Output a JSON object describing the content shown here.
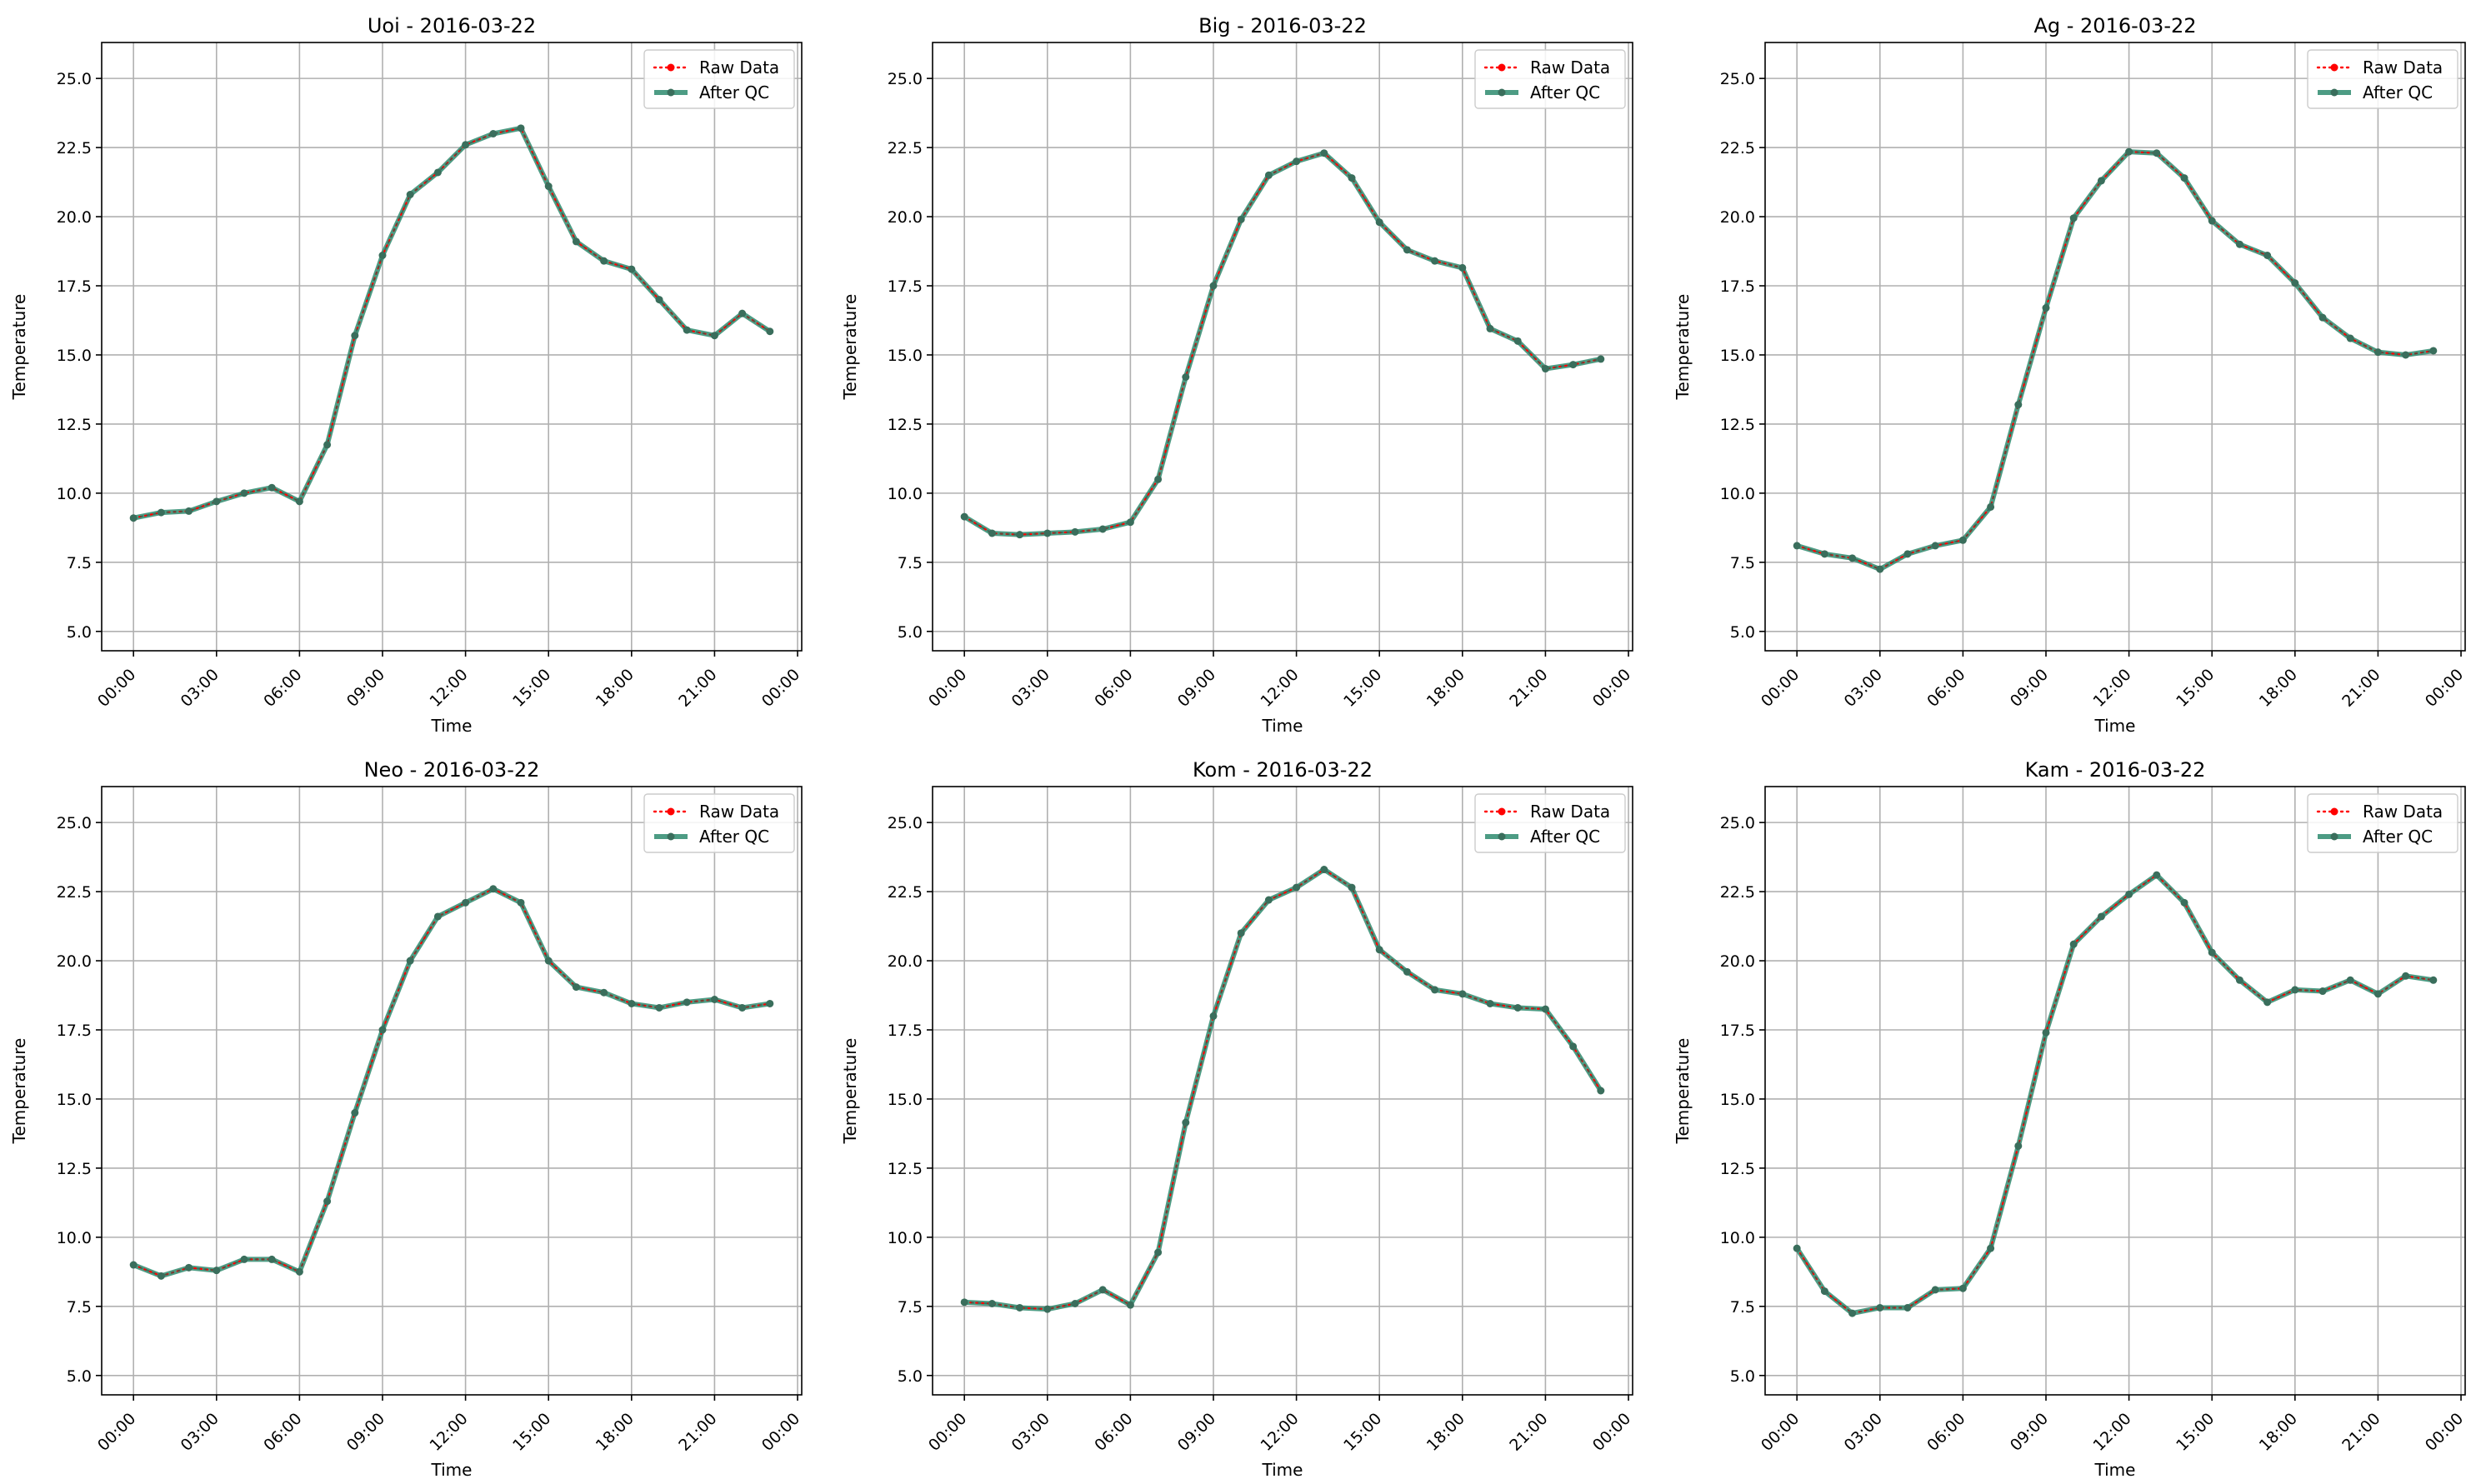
{
  "chart_data": [
    {
      "type": "line",
      "title": "Uoi - 2016-03-22",
      "xlabel": "Time",
      "ylabel": "Temperature",
      "x_ticks": [
        "00:00",
        "03:00",
        "06:00",
        "09:00",
        "12:00",
        "15:00",
        "18:00",
        "21:00",
        "00:00"
      ],
      "y_ticks": [
        "5.0",
        "7.5",
        "10.0",
        "12.5",
        "15.0",
        "17.5",
        "20.0",
        "22.5",
        "25.0"
      ],
      "ylim": [
        4.3,
        26.3
      ],
      "xlim_hours": [
        -1.15,
        24.15
      ],
      "grid": true,
      "legend_position": "top-right",
      "x_hours": [
        0,
        1,
        2,
        3,
        4,
        5,
        6,
        7,
        8,
        9,
        10,
        11,
        12,
        13,
        14,
        15,
        16,
        17,
        18,
        19,
        20,
        21,
        22,
        23
      ],
      "series": [
        {
          "name": "Raw Data",
          "color": "#ff0000",
          "values": [
            9.1,
            9.3,
            9.35,
            9.7,
            10.0,
            10.2,
            9.7,
            11.75,
            15.7,
            18.6,
            20.8,
            21.6,
            22.6,
            23.0,
            23.2,
            21.1,
            19.1,
            18.4,
            18.1,
            17.0,
            15.9,
            15.7,
            16.5,
            15.85
          ]
        },
        {
          "name": "After QC",
          "color": "#2e8b6e",
          "values": [
            9.1,
            9.3,
            9.35,
            9.7,
            10.0,
            10.2,
            9.7,
            11.75,
            15.7,
            18.6,
            20.8,
            21.6,
            22.6,
            23.0,
            23.2,
            21.1,
            19.1,
            18.4,
            18.1,
            17.0,
            15.9,
            15.7,
            16.5,
            15.85
          ]
        }
      ]
    },
    {
      "type": "line",
      "title": "Big - 2016-03-22",
      "xlabel": "Time",
      "ylabel": "Temperature",
      "x_ticks": [
        "00:00",
        "03:00",
        "06:00",
        "09:00",
        "12:00",
        "15:00",
        "18:00",
        "21:00",
        "00:00"
      ],
      "y_ticks": [
        "5.0",
        "7.5",
        "10.0",
        "12.5",
        "15.0",
        "17.5",
        "20.0",
        "22.5",
        "25.0"
      ],
      "ylim": [
        4.3,
        26.3
      ],
      "xlim_hours": [
        -1.15,
        24.15
      ],
      "grid": true,
      "legend_position": "top-right",
      "x_hours": [
        0,
        1,
        2,
        3,
        4,
        5,
        6,
        7,
        8,
        9,
        10,
        11,
        12,
        13,
        14,
        15,
        16,
        17,
        18,
        19,
        20,
        21,
        22,
        23
      ],
      "series": [
        {
          "name": "Raw Data",
          "color": "#ff0000",
          "values": [
            9.15,
            8.55,
            8.5,
            8.55,
            8.6,
            8.7,
            8.95,
            10.5,
            14.2,
            17.5,
            19.9,
            21.5,
            22.0,
            22.3,
            21.4,
            19.8,
            18.8,
            18.4,
            18.15,
            15.95,
            15.5,
            14.5,
            14.65,
            14.85
          ]
        },
        {
          "name": "After QC",
          "color": "#2e8b6e",
          "values": [
            9.15,
            8.55,
            8.5,
            8.55,
            8.6,
            8.7,
            8.95,
            10.5,
            14.2,
            17.5,
            19.9,
            21.5,
            22.0,
            22.3,
            21.4,
            19.8,
            18.8,
            18.4,
            18.15,
            15.95,
            15.5,
            14.5,
            14.65,
            14.85
          ]
        }
      ]
    },
    {
      "type": "line",
      "title": "Ag - 2016-03-22",
      "xlabel": "Time",
      "ylabel": "Temperature",
      "x_ticks": [
        "00:00",
        "03:00",
        "06:00",
        "09:00",
        "12:00",
        "15:00",
        "18:00",
        "21:00",
        "00:00"
      ],
      "y_ticks": [
        "5.0",
        "7.5",
        "10.0",
        "12.5",
        "15.0",
        "17.5",
        "20.0",
        "22.5",
        "25.0"
      ],
      "ylim": [
        4.3,
        26.3
      ],
      "xlim_hours": [
        -1.15,
        24.15
      ],
      "grid": true,
      "legend_position": "top-right",
      "x_hours": [
        0,
        1,
        2,
        3,
        4,
        5,
        6,
        7,
        8,
        9,
        10,
        11,
        12,
        13,
        14,
        15,
        16,
        17,
        18,
        19,
        20,
        21,
        22,
        23
      ],
      "series": [
        {
          "name": "Raw Data",
          "color": "#ff0000",
          "values": [
            8.1,
            7.8,
            7.65,
            7.25,
            7.8,
            8.1,
            8.3,
            9.5,
            13.2,
            16.7,
            19.95,
            21.3,
            22.35,
            22.3,
            21.4,
            19.85,
            19.0,
            18.6,
            17.6,
            16.35,
            15.6,
            15.1,
            15.0,
            15.15
          ]
        },
        {
          "name": "After QC",
          "color": "#2e8b6e",
          "values": [
            8.1,
            7.8,
            7.65,
            7.25,
            7.8,
            8.1,
            8.3,
            9.5,
            13.2,
            16.7,
            19.95,
            21.3,
            22.35,
            22.3,
            21.4,
            19.85,
            19.0,
            18.6,
            17.6,
            16.35,
            15.6,
            15.1,
            15.0,
            15.15
          ]
        }
      ]
    },
    {
      "type": "line",
      "title": "Neo - 2016-03-22",
      "xlabel": "Time",
      "ylabel": "Temperature",
      "x_ticks": [
        "00:00",
        "03:00",
        "06:00",
        "09:00",
        "12:00",
        "15:00",
        "18:00",
        "21:00",
        "00:00"
      ],
      "y_ticks": [
        "5.0",
        "7.5",
        "10.0",
        "12.5",
        "15.0",
        "17.5",
        "20.0",
        "22.5",
        "25.0"
      ],
      "ylim": [
        4.3,
        26.3
      ],
      "xlim_hours": [
        -1.15,
        24.15
      ],
      "grid": true,
      "legend_position": "top-right",
      "x_hours": [
        0,
        1,
        2,
        3,
        4,
        5,
        6,
        7,
        8,
        9,
        10,
        11,
        12,
        13,
        14,
        15,
        16,
        17,
        18,
        19,
        20,
        21,
        22,
        23
      ],
      "series": [
        {
          "name": "Raw Data",
          "color": "#ff0000",
          "values": [
            9.0,
            8.6,
            8.9,
            8.8,
            9.2,
            9.2,
            8.75,
            11.3,
            14.5,
            17.5,
            20.0,
            21.6,
            22.1,
            22.6,
            22.1,
            20.0,
            19.05,
            18.85,
            18.45,
            18.3,
            18.5,
            18.6,
            18.3,
            18.45
          ]
        },
        {
          "name": "After QC",
          "color": "#2e8b6e",
          "values": [
            9.0,
            8.6,
            8.9,
            8.8,
            9.2,
            9.2,
            8.75,
            11.3,
            14.5,
            17.5,
            20.0,
            21.6,
            22.1,
            22.6,
            22.1,
            20.0,
            19.05,
            18.85,
            18.45,
            18.3,
            18.5,
            18.6,
            18.3,
            18.45
          ]
        }
      ]
    },
    {
      "type": "line",
      "title": "Kom - 2016-03-22",
      "xlabel": "Time",
      "ylabel": "Temperature",
      "x_ticks": [
        "00:00",
        "03:00",
        "06:00",
        "09:00",
        "12:00",
        "15:00",
        "18:00",
        "21:00",
        "00:00"
      ],
      "y_ticks": [
        "5.0",
        "7.5",
        "10.0",
        "12.5",
        "15.0",
        "17.5",
        "20.0",
        "22.5",
        "25.0"
      ],
      "ylim": [
        4.3,
        26.3
      ],
      "xlim_hours": [
        -1.15,
        24.15
      ],
      "grid": true,
      "legend_position": "top-right",
      "x_hours": [
        0,
        1,
        2,
        3,
        4,
        5,
        6,
        7,
        8,
        9,
        10,
        11,
        12,
        13,
        14,
        15,
        16,
        17,
        18,
        19,
        20,
        21,
        22,
        23
      ],
      "series": [
        {
          "name": "Raw Data",
          "color": "#ff0000",
          "values": [
            7.65,
            7.6,
            7.45,
            7.4,
            7.6,
            8.1,
            7.55,
            9.45,
            14.15,
            18.0,
            21.0,
            22.2,
            22.65,
            23.3,
            22.65,
            20.4,
            19.6,
            18.95,
            18.8,
            18.45,
            18.3,
            18.25,
            16.9,
            15.3
          ]
        },
        {
          "name": "After QC",
          "color": "#2e8b6e",
          "values": [
            7.65,
            7.6,
            7.45,
            7.4,
            7.6,
            8.1,
            7.55,
            9.45,
            14.15,
            18.0,
            21.0,
            22.2,
            22.65,
            23.3,
            22.65,
            20.4,
            19.6,
            18.95,
            18.8,
            18.45,
            18.3,
            18.25,
            16.9,
            15.3
          ]
        }
      ]
    },
    {
      "type": "line",
      "title": "Kam - 2016-03-22",
      "xlabel": "Time",
      "ylabel": "Temperature",
      "x_ticks": [
        "00:00",
        "03:00",
        "06:00",
        "09:00",
        "12:00",
        "15:00",
        "18:00",
        "21:00",
        "00:00"
      ],
      "y_ticks": [
        "5.0",
        "7.5",
        "10.0",
        "12.5",
        "15.0",
        "17.5",
        "20.0",
        "22.5",
        "25.0"
      ],
      "ylim": [
        4.3,
        26.3
      ],
      "xlim_hours": [
        -1.15,
        24.15
      ],
      "grid": true,
      "legend_position": "top-right",
      "x_hours": [
        0,
        1,
        2,
        3,
        4,
        5,
        6,
        7,
        8,
        9,
        10,
        11,
        12,
        13,
        14,
        15,
        16,
        17,
        18,
        19,
        20,
        21,
        22,
        23
      ],
      "series": [
        {
          "name": "Raw Data",
          "color": "#ff0000",
          "values": [
            9.6,
            8.05,
            7.25,
            7.45,
            7.45,
            8.1,
            8.15,
            9.6,
            13.3,
            17.4,
            20.6,
            21.6,
            22.4,
            23.1,
            22.1,
            20.3,
            19.3,
            18.5,
            18.95,
            18.9,
            19.3,
            18.8,
            19.45,
            19.3
          ]
        },
        {
          "name": "After QC",
          "color": "#2e8b6e",
          "values": [
            9.6,
            8.05,
            7.25,
            7.45,
            7.45,
            8.1,
            8.15,
            9.6,
            13.3,
            17.4,
            20.6,
            21.6,
            22.4,
            23.1,
            22.1,
            20.3,
            19.3,
            18.5,
            18.95,
            18.9,
            19.3,
            18.8,
            19.45,
            19.3
          ]
        }
      ]
    }
  ]
}
